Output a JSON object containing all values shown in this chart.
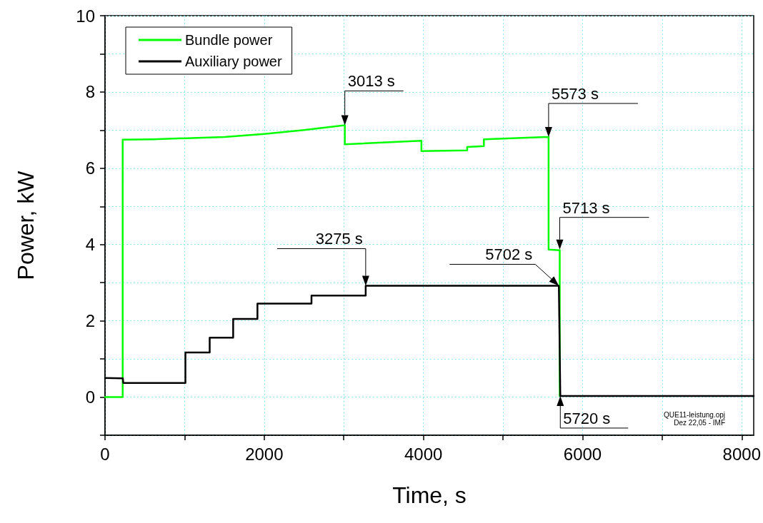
{
  "chart_data": {
    "type": "line",
    "xlabel": "Time, s",
    "ylabel": "Power, kW",
    "xlim": [
      0,
      8150
    ],
    "ylim": [
      -1,
      10
    ],
    "xticks": [
      0,
      {
        "value": 1000,
        "label": null
      },
      2000,
      {
        "value": 3000,
        "label": null
      },
      4000,
      {
        "value": 5000,
        "label": null
      },
      6000,
      {
        "value": 7000,
        "label": null
      },
      8000
    ],
    "yticks": [
      {
        "value": -1,
        "label": null
      },
      0,
      {
        "value": 1,
        "label": null
      },
      2,
      {
        "value": 3,
        "label": null
      },
      4,
      {
        "value": 5,
        "label": null
      },
      6,
      {
        "value": 7,
        "label": null
      },
      8,
      {
        "value": 9,
        "label": null
      },
      10
    ],
    "grid": true,
    "legend": "top left",
    "line_style": "solid",
    "series": [
      {
        "name": "Bundle power",
        "color": "#00ff00",
        "x": [
          0,
          222,
          222,
          600,
          1500,
          2000,
          2500,
          3013,
          3013,
          3975,
          3975,
          4550,
          4550,
          4760,
          4760,
          5573,
          5573,
          5713,
          5713
        ],
        "values": [
          0,
          0,
          6.75,
          6.76,
          6.82,
          6.9,
          7.0,
          7.13,
          6.63,
          6.72,
          6.45,
          6.47,
          6.56,
          6.58,
          6.76,
          6.82,
          3.87,
          3.85,
          0.03
        ]
      },
      {
        "name": "Auxiliary power",
        "color": "#000000",
        "x": [
          0,
          224,
          230,
          1010,
          1010,
          1315,
          1315,
          1610,
          1610,
          1915,
          1915,
          2594,
          2594,
          3275,
          3275,
          5702,
          5720,
          8150
        ],
        "values": [
          0.5,
          0.49,
          0.37,
          0.37,
          1.17,
          1.17,
          1.56,
          1.56,
          2.05,
          2.05,
          2.45,
          2.45,
          2.66,
          2.66,
          2.92,
          2.92,
          0.03,
          0.03
        ]
      }
    ],
    "annotations": [
      {
        "text": "3013 s",
        "x": 3013,
        "y": 7.13
      },
      {
        "text": "3275 s",
        "x": 3275,
        "y": 2.92
      },
      {
        "text": "5573 s",
        "x": 5573,
        "y": 6.82
      },
      {
        "text": "5713 s",
        "x": 5713,
        "y": 3.87
      },
      {
        "text": "5702 s",
        "x": 5702,
        "y": 2.92
      },
      {
        "text": "5720 s",
        "x": 5720,
        "y": 0.03
      },
      "QUE11-leistung.opj",
      "Dez 22,05 - IMF"
    ]
  }
}
